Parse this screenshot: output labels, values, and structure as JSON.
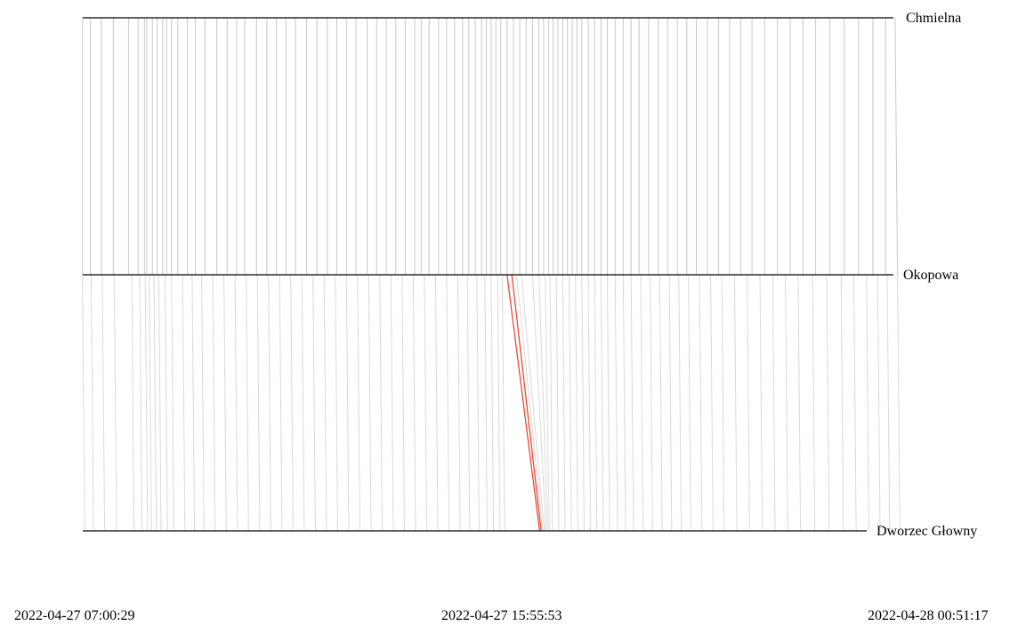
{
  "chart_data": {
    "type": "line",
    "title": "",
    "xlabel": "",
    "ylabel": "",
    "stops": [
      "Chmielna",
      "Okopowa",
      "Dworzec Głowny"
    ],
    "time_labels": [
      "2022-04-27 07:00:29",
      "2022-04-27 15:55:53",
      "2022-04-28 00:51:17"
    ],
    "xlim": [
      "2022-04-27 07:00:29",
      "2022-04-28 00:51:17"
    ],
    "grid": false,
    "colors": {
      "axis": "#000000",
      "trip": "#c8c8c8",
      "highlight": "#e8402a"
    },
    "trips_chmielna_okopowa": [
      [
        "07:00",
        "07:00"
      ],
      [
        "07:10",
        "07:10"
      ],
      [
        "07:24",
        "07:24"
      ],
      [
        "07:39",
        "07:39"
      ],
      [
        "07:58",
        "07:58"
      ],
      [
        "08:10",
        "08:10"
      ],
      [
        "08:18",
        "08:18"
      ],
      [
        "08:21",
        "08:21"
      ],
      [
        "08:28",
        "08:28"
      ],
      [
        "08:34",
        "08:34"
      ],
      [
        "08:41",
        "08:41"
      ],
      [
        "08:46",
        "08:46"
      ],
      [
        "08:52",
        "08:52"
      ],
      [
        "09:00",
        "09:00"
      ],
      [
        "09:12",
        "09:12"
      ],
      [
        "09:22",
        "09:22"
      ],
      [
        "09:34",
        "09:34"
      ],
      [
        "09:49",
        "09:49"
      ],
      [
        "10:02",
        "10:02"
      ],
      [
        "10:14",
        "10:14"
      ],
      [
        "10:24",
        "10:24"
      ],
      [
        "10:39",
        "10:39"
      ],
      [
        "10:52",
        "10:52"
      ],
      [
        "11:04",
        "11:04"
      ],
      [
        "11:16",
        "11:16"
      ],
      [
        "11:28",
        "11:28"
      ],
      [
        "11:42",
        "11:42"
      ],
      [
        "11:55",
        "11:55"
      ],
      [
        "12:08",
        "12:08"
      ],
      [
        "12:20",
        "12:20"
      ],
      [
        "12:32",
        "12:32"
      ],
      [
        "12:44",
        "12:44"
      ],
      [
        "12:58",
        "12:58"
      ],
      [
        "13:10",
        "13:10"
      ],
      [
        "13:22",
        "13:22"
      ],
      [
        "13:34",
        "13:34"
      ],
      [
        "13:46",
        "13:46"
      ],
      [
        "13:58",
        "13:58"
      ],
      [
        "14:06",
        "14:06"
      ],
      [
        "14:16",
        "14:16"
      ],
      [
        "14:28",
        "14:28"
      ],
      [
        "14:38",
        "14:38"
      ],
      [
        "14:48",
        "14:48"
      ],
      [
        "14:58",
        "14:58"
      ],
      [
        "15:06",
        "15:06"
      ],
      [
        "15:14",
        "15:14"
      ],
      [
        "15:22",
        "15:22"
      ],
      [
        "15:28",
        "15:28"
      ],
      [
        "15:34",
        "15:34"
      ],
      [
        "15:40",
        "15:40"
      ],
      [
        "15:46",
        "15:46"
      ],
      [
        "15:54",
        "15:54"
      ],
      [
        "16:02",
        "16:02"
      ],
      [
        "16:10",
        "16:10"
      ],
      [
        "16:18",
        "16:18"
      ],
      [
        "16:26",
        "16:26"
      ],
      [
        "16:34",
        "16:34"
      ],
      [
        "16:40",
        "16:40"
      ],
      [
        "16:46",
        "16:46"
      ],
      [
        "16:52",
        "16:52"
      ],
      [
        "16:58",
        "16:58"
      ],
      [
        "17:04",
        "17:04"
      ],
      [
        "17:10",
        "17:10"
      ],
      [
        "17:16",
        "17:16"
      ],
      [
        "17:22",
        "17:22"
      ],
      [
        "17:28",
        "17:28"
      ],
      [
        "17:36",
        "17:36"
      ],
      [
        "17:44",
        "17:44"
      ],
      [
        "17:52",
        "17:52"
      ],
      [
        "18:00",
        "18:00"
      ],
      [
        "18:10",
        "18:10"
      ],
      [
        "18:20",
        "18:20"
      ],
      [
        "18:30",
        "18:30"
      ],
      [
        "18:40",
        "18:40"
      ],
      [
        "18:52",
        "18:52"
      ],
      [
        "19:04",
        "19:04"
      ],
      [
        "19:16",
        "19:16"
      ],
      [
        "19:28",
        "19:28"
      ],
      [
        "19:40",
        "19:40"
      ],
      [
        "19:52",
        "19:52"
      ],
      [
        "20:06",
        "20:06"
      ],
      [
        "20:20",
        "20:20"
      ],
      [
        "20:34",
        "20:34"
      ],
      [
        "20:48",
        "20:48"
      ],
      [
        "21:02",
        "21:02"
      ],
      [
        "21:18",
        "21:18"
      ],
      [
        "21:34",
        "21:34"
      ],
      [
        "21:50",
        "21:50"
      ],
      [
        "22:06",
        "22:06"
      ],
      [
        "22:22",
        "22:22"
      ],
      [
        "22:40",
        "22:40"
      ],
      [
        "22:58",
        "22:58"
      ],
      [
        "23:16",
        "23:16"
      ],
      [
        "23:34",
        "23:34"
      ],
      [
        "23:50",
        "23:50"
      ],
      [
        "00:02",
        "00:05"
      ]
    ],
    "trips_okopowa_dworzec": [
      [
        "07:00",
        "07:03"
      ],
      [
        "07:11",
        "07:14"
      ],
      [
        "07:25",
        "07:28"
      ],
      [
        "07:40",
        "07:43"
      ],
      [
        "08:02",
        "08:05"
      ],
      [
        "08:12",
        "08:15"
      ],
      [
        "08:19",
        "08:22"
      ],
      [
        "08:24",
        "08:27"
      ],
      [
        "08:30",
        "08:33"
      ],
      [
        "08:36",
        "08:39"
      ],
      [
        "08:44",
        "08:47"
      ],
      [
        "08:52",
        "08:55"
      ],
      [
        "09:06",
        "09:09"
      ],
      [
        "09:18",
        "09:21"
      ],
      [
        "09:30",
        "09:33"
      ],
      [
        "09:44",
        "09:47"
      ],
      [
        "09:58",
        "10:01"
      ],
      [
        "10:12",
        "10:15"
      ],
      [
        "10:26",
        "10:29"
      ],
      [
        "10:40",
        "10:43"
      ],
      [
        "10:54",
        "10:57"
      ],
      [
        "11:08",
        "11:11"
      ],
      [
        "11:22",
        "11:25"
      ],
      [
        "11:36",
        "11:39"
      ],
      [
        "11:50",
        "11:53"
      ],
      [
        "12:04",
        "12:07"
      ],
      [
        "12:18",
        "12:21"
      ],
      [
        "12:32",
        "12:35"
      ],
      [
        "12:46",
        "12:49"
      ],
      [
        "13:00",
        "13:03"
      ],
      [
        "13:14",
        "13:17"
      ],
      [
        "13:28",
        "13:31"
      ],
      [
        "13:42",
        "13:45"
      ],
      [
        "13:56",
        "13:59"
      ],
      [
        "14:10",
        "14:13"
      ],
      [
        "14:24",
        "14:27"
      ],
      [
        "14:38",
        "14:41"
      ],
      [
        "14:52",
        "14:55"
      ],
      [
        "15:04",
        "15:07"
      ],
      [
        "15:16",
        "15:19"
      ],
      [
        "15:26",
        "15:29"
      ],
      [
        "15:34",
        "15:37"
      ],
      [
        "15:42",
        "15:45"
      ],
      [
        "15:48",
        "15:51"
      ],
      [
        "15:54",
        "16:35"
      ],
      [
        "16:00",
        "16:37"
      ],
      [
        "16:06",
        "16:39"
      ],
      [
        "16:12",
        "16:41"
      ],
      [
        "16:26",
        "16:43"
      ],
      [
        "16:34",
        "16:45"
      ],
      [
        "16:42",
        "16:47"
      ],
      [
        "16:48",
        "16:51"
      ],
      [
        "16:56",
        "16:59"
      ],
      [
        "17:04",
        "17:07"
      ],
      [
        "17:12",
        "17:15"
      ],
      [
        "17:20",
        "17:23"
      ],
      [
        "17:28",
        "17:31"
      ],
      [
        "17:36",
        "17:39"
      ],
      [
        "17:44",
        "17:47"
      ],
      [
        "17:52",
        "17:55"
      ],
      [
        "18:00",
        "18:03"
      ],
      [
        "18:10",
        "18:13"
      ],
      [
        "18:20",
        "18:23"
      ],
      [
        "18:30",
        "18:33"
      ],
      [
        "18:42",
        "18:45"
      ],
      [
        "18:54",
        "18:57"
      ],
      [
        "19:06",
        "19:09"
      ],
      [
        "19:18",
        "19:21"
      ],
      [
        "19:30",
        "19:33"
      ],
      [
        "19:42",
        "19:45"
      ],
      [
        "19:56",
        "19:59"
      ],
      [
        "20:10",
        "20:13"
      ],
      [
        "20:24",
        "20:27"
      ],
      [
        "20:40",
        "20:43"
      ],
      [
        "20:56",
        "20:59"
      ],
      [
        "21:12",
        "21:15"
      ],
      [
        "21:28",
        "21:31"
      ],
      [
        "21:44",
        "21:47"
      ],
      [
        "22:00",
        "22:03"
      ],
      [
        "22:18",
        "22:21"
      ],
      [
        "22:36",
        "22:39"
      ],
      [
        "22:54",
        "22:57"
      ],
      [
        "23:10",
        "23:13"
      ],
      [
        "23:26",
        "23:29"
      ],
      [
        "23:40",
        "23:43"
      ],
      [
        "23:52",
        "23:55"
      ],
      [
        "00:05",
        "00:08"
      ]
    ],
    "highlighted_trips_okopowa_dworzec": [
      [
        "15:54",
        "16:35"
      ],
      [
        "16:00",
        "16:37"
      ]
    ]
  }
}
